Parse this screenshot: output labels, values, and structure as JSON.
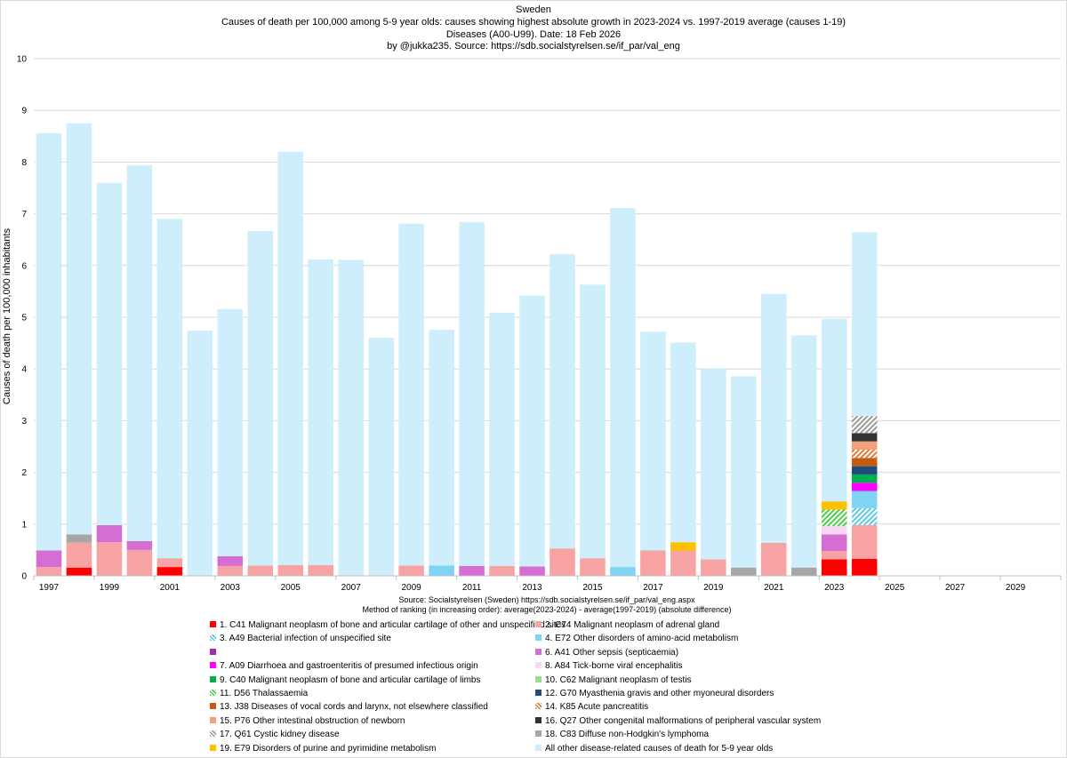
{
  "header": {
    "line1": "Sweden",
    "line2": "Causes of death per 100,000 among  5-9 year olds: causes showing highest absolute  growth in 2023-2024 vs. 1997-2019 average   (causes 1-19)",
    "line3": "Diseases (A00-U99).    Date: 18 Feb 2026",
    "line4": "by @jukka235. Source: https://sdb.socialstyrelsen.se/if_par/val_eng"
  },
  "source": {
    "line1": "Source: Socialstyrelsen (Sweden)  https://sdb.socialstyrelsen.se/if_par/val_eng.aspx",
    "line2": "Method of ranking (in increasing order): average(2023-2024) - average(1997-2019)  (absolute difference)"
  },
  "colors": {
    "c1": "#ff0000",
    "c2": "#f8a3a3",
    "c3": "#5bc8e8",
    "c4": "#7fd3f3",
    "c5": "#a52aa5",
    "c6": "#d46ed4",
    "c7": "#ff00ff",
    "c8": "#f9d6f4",
    "c9": "#00b050",
    "c10": "#92e08f",
    "c11": "#4ccc4c",
    "c12": "#1f4e79",
    "c13": "#c55a11",
    "c14": "#e07a3a",
    "c15": "#f2a07b",
    "c16": "#333333",
    "c17": "#9a9a9a",
    "c18": "#a6a6a6",
    "c19": "#ffc000",
    "other": "#cdeefa"
  },
  "legend": [
    {
      "key": "c1",
      "label": "1. C41 Malignant neoplasm of bone and articular cartilage of other and unspecified sites",
      "pattern": "solid"
    },
    {
      "key": "c2",
      "label": "2. C74 Malignant neoplasm of adrenal gland",
      "pattern": "solid"
    },
    {
      "key": "c3",
      "label": "3. A49 Bacterial infection of unspecified site",
      "pattern": "hatch"
    },
    {
      "key": "c4",
      "label": "4. E72 Other disorders of amino-acid metabolism",
      "pattern": "solid"
    },
    {
      "key": "c5",
      "label": "",
      "pattern": "solid"
    },
    {
      "key": "c6",
      "label": "6. A41 Other sepsis (septicaemia)",
      "pattern": "solid"
    },
    {
      "key": "c7",
      "label": "7. A09 Diarrhoea and gastroenteritis of presumed infectious origin",
      "pattern": "solid"
    },
    {
      "key": "c8",
      "label": "8. A84 Tick-borne viral encephalitis",
      "pattern": "solid"
    },
    {
      "key": "c9",
      "label": "9. C40 Malignant neoplasm of bone and articular cartilage of limbs",
      "pattern": "solid"
    },
    {
      "key": "c10",
      "label": "10. C62 Malignant neoplasm of testis",
      "pattern": "solid"
    },
    {
      "key": "c11",
      "label": "11. D56 Thalassaemia",
      "pattern": "hatch"
    },
    {
      "key": "c12",
      "label": "12. G70 Myasthenia gravis and other myoneural disorders",
      "pattern": "solid"
    },
    {
      "key": "c13",
      "label": "13. J38 Diseases of vocal cords and larynx, not elsewhere classified",
      "pattern": "solid"
    },
    {
      "key": "c14",
      "label": "14. K85 Acute pancreatitis",
      "pattern": "hatch"
    },
    {
      "key": "c15",
      "label": "15. P76 Other intestinal obstruction of newborn",
      "pattern": "solid"
    },
    {
      "key": "c16",
      "label": "16. Q27 Other congenital malformations of peripheral vascular system",
      "pattern": "solid"
    },
    {
      "key": "c17",
      "label": "17. Q61 Cystic kidney disease",
      "pattern": "hatch"
    },
    {
      "key": "c18",
      "label": "18. C83 Diffuse non-Hodgkin's lymphoma",
      "pattern": "solid"
    },
    {
      "key": "c19",
      "label": "19. E79 Disorders of purine and pyrimidine metabolism",
      "pattern": "solid"
    },
    {
      "key": "other",
      "label": "All other disease-related causes of death for  5-9 year olds",
      "pattern": "solid"
    }
  ],
  "chart_data": {
    "type": "bar",
    "stacked": true,
    "ylabel": "Causes of death per 100,000 inhabitants",
    "xlabel": "",
    "ylim": [
      0,
      10
    ],
    "yticks": [
      "0",
      "1",
      "2",
      "3",
      "4",
      "5",
      "6",
      "7",
      "8",
      "9",
      "10"
    ],
    "xtick_labels": [
      "1997",
      "1999",
      "2001",
      "2003",
      "2005",
      "2007",
      "2009",
      "2011",
      "2013",
      "2015",
      "2017",
      "2019",
      "2021",
      "2023",
      "2025",
      "2027",
      "2029"
    ],
    "categories": [
      "1997",
      "1998",
      "1999",
      "2000",
      "2001",
      "2002",
      "2003",
      "2004",
      "2005",
      "2006",
      "2007",
      "2008",
      "2009",
      "2010",
      "2011",
      "2012",
      "2013",
      "2014",
      "2015",
      "2016",
      "2017",
      "2018",
      "2019",
      "2020",
      "2021",
      "2022",
      "2023",
      "2024",
      "2025",
      "2026",
      "2027",
      "2028",
      "2029",
      "2030"
    ],
    "bars": [
      {
        "year": "1997",
        "segments": [
          {
            "key": "c2",
            "value": 0.17
          },
          {
            "key": "c6",
            "value": 0.32
          },
          {
            "key": "other",
            "value": 8.07
          }
        ]
      },
      {
        "year": "1998",
        "segments": [
          {
            "key": "c1",
            "value": 0.16
          },
          {
            "key": "c2",
            "value": 0.48
          },
          {
            "key": "c18",
            "value": 0.16
          },
          {
            "key": "other",
            "value": 7.95
          }
        ]
      },
      {
        "year": "1999",
        "segments": [
          {
            "key": "c2",
            "value": 0.65
          },
          {
            "key": "c6",
            "value": 0.33
          },
          {
            "key": "other",
            "value": 6.62
          }
        ]
      },
      {
        "year": "2000",
        "segments": [
          {
            "key": "c2",
            "value": 0.5
          },
          {
            "key": "c6",
            "value": 0.17
          },
          {
            "key": "other",
            "value": 7.27
          }
        ]
      },
      {
        "year": "2001",
        "segments": [
          {
            "key": "c1",
            "value": 0.17
          },
          {
            "key": "c2",
            "value": 0.17
          },
          {
            "key": "other",
            "value": 6.56
          }
        ]
      },
      {
        "year": "2002",
        "segments": [
          {
            "key": "other",
            "value": 4.74
          }
        ]
      },
      {
        "year": "2003",
        "segments": [
          {
            "key": "c2",
            "value": 0.19
          },
          {
            "key": "c6",
            "value": 0.19
          },
          {
            "key": "other",
            "value": 4.78
          }
        ]
      },
      {
        "year": "2004",
        "segments": [
          {
            "key": "c2",
            "value": 0.2
          },
          {
            "key": "other",
            "value": 6.47
          }
        ]
      },
      {
        "year": "2005",
        "segments": [
          {
            "key": "c2",
            "value": 0.21
          },
          {
            "key": "other",
            "value": 7.99
          }
        ]
      },
      {
        "year": "2006",
        "segments": [
          {
            "key": "c2",
            "value": 0.21
          },
          {
            "key": "other",
            "value": 5.91
          }
        ]
      },
      {
        "year": "2007",
        "segments": [
          {
            "key": "other",
            "value": 6.11
          }
        ]
      },
      {
        "year": "2008",
        "segments": [
          {
            "key": "other",
            "value": 4.6
          }
        ]
      },
      {
        "year": "2009",
        "segments": [
          {
            "key": "c2",
            "value": 0.2
          },
          {
            "key": "other",
            "value": 6.61
          }
        ]
      },
      {
        "year": "2010",
        "segments": [
          {
            "key": "c4",
            "value": 0.2
          },
          {
            "key": "other",
            "value": 4.56
          }
        ]
      },
      {
        "year": "2011",
        "segments": [
          {
            "key": "c6",
            "value": 0.19
          },
          {
            "key": "other",
            "value": 6.65
          }
        ]
      },
      {
        "year": "2012",
        "segments": [
          {
            "key": "c2",
            "value": 0.19
          },
          {
            "key": "other",
            "value": 4.9
          }
        ]
      },
      {
        "year": "2013",
        "segments": [
          {
            "key": "c6",
            "value": 0.18
          },
          {
            "key": "other",
            "value": 5.24
          }
        ]
      },
      {
        "year": "2014",
        "segments": [
          {
            "key": "c2",
            "value": 0.53
          },
          {
            "key": "other",
            "value": 5.69
          }
        ]
      },
      {
        "year": "2015",
        "segments": [
          {
            "key": "c2",
            "value": 0.34
          },
          {
            "key": "other",
            "value": 5.29
          }
        ]
      },
      {
        "year": "2016",
        "segments": [
          {
            "key": "c4",
            "value": 0.17
          },
          {
            "key": "other",
            "value": 6.94
          }
        ]
      },
      {
        "year": "2017",
        "segments": [
          {
            "key": "c2",
            "value": 0.49
          },
          {
            "key": "other",
            "value": 4.23
          }
        ]
      },
      {
        "year": "2018",
        "segments": [
          {
            "key": "c2",
            "value": 0.49
          },
          {
            "key": "c19",
            "value": 0.16
          },
          {
            "key": "other",
            "value": 3.86
          }
        ]
      },
      {
        "year": "2019",
        "segments": [
          {
            "key": "c2",
            "value": 0.32
          },
          {
            "key": "other",
            "value": 3.69
          }
        ]
      },
      {
        "year": "2020",
        "segments": [
          {
            "key": "c18",
            "value": 0.16
          },
          {
            "key": "other",
            "value": 3.7
          }
        ]
      },
      {
        "year": "2021",
        "segments": [
          {
            "key": "c2",
            "value": 0.64
          },
          {
            "key": "other",
            "value": 4.81
          }
        ]
      },
      {
        "year": "2022",
        "segments": [
          {
            "key": "c18",
            "value": 0.16
          },
          {
            "key": "other",
            "value": 4.49
          }
        ]
      },
      {
        "year": "2023",
        "segments": [
          {
            "key": "c1",
            "value": 0.32
          },
          {
            "key": "c2",
            "value": 0.16
          },
          {
            "key": "c6",
            "value": 0.32
          },
          {
            "key": "c8",
            "value": 0.16
          },
          {
            "key": "c11",
            "value": 0.32
          },
          {
            "key": "c19",
            "value": 0.16
          },
          {
            "key": "other",
            "value": 3.53
          }
        ]
      },
      {
        "year": "2024",
        "segments": [
          {
            "key": "c1",
            "value": 0.33
          },
          {
            "key": "c2",
            "value": 0.65
          },
          {
            "key": "c3",
            "value": 0.33
          },
          {
            "key": "c4",
            "value": 0.33
          },
          {
            "key": "c7",
            "value": 0.16
          },
          {
            "key": "c9",
            "value": 0.16
          },
          {
            "key": "c12",
            "value": 0.16
          },
          {
            "key": "c13",
            "value": 0.16
          },
          {
            "key": "c14",
            "value": 0.16
          },
          {
            "key": "c15",
            "value": 0.16
          },
          {
            "key": "c16",
            "value": 0.16
          },
          {
            "key": "c17",
            "value": 0.33
          },
          {
            "key": "other",
            "value": 3.55
          }
        ]
      },
      {
        "year": "2025",
        "segments": []
      },
      {
        "year": "2026",
        "segments": []
      },
      {
        "year": "2027",
        "segments": []
      },
      {
        "year": "2028",
        "segments": []
      },
      {
        "year": "2029",
        "segments": []
      },
      {
        "year": "2030",
        "segments": []
      }
    ]
  }
}
